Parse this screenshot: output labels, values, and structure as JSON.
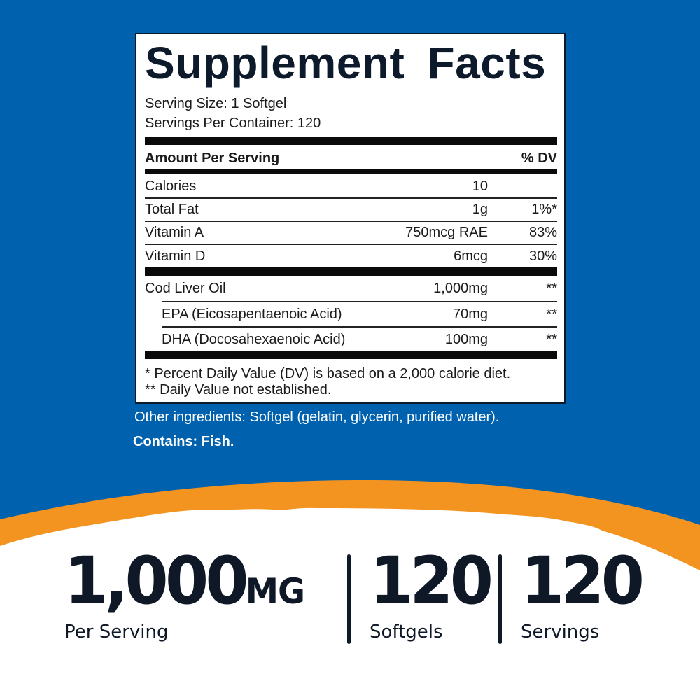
{
  "colors": {
    "background": "#0061ae",
    "accent": "#f39320",
    "text": "#0e1826"
  },
  "facts": {
    "title": "Supplement Facts",
    "serving_size": "Serving Size: 1 Softgel",
    "servings_per_container": "Servings Per Container: 120",
    "header": {
      "amount": "Amount Per Serving",
      "dv": "% DV"
    },
    "rows": [
      {
        "name": "Calories",
        "amount": "10",
        "dv": ""
      },
      {
        "name": "Total Fat",
        "amount": "1g",
        "dv": "1%*"
      },
      {
        "name": "Vitamin A",
        "amount": "750mcg RAE",
        "dv": "83%"
      },
      {
        "name": "Vitamin D",
        "amount": "6mcg",
        "dv": "30%"
      },
      {
        "name": "Cod Liver Oil",
        "amount": "1,000mg",
        "dv": "**"
      },
      {
        "name": "EPA (Eicosapentaenoic Acid)",
        "amount": "70mg",
        "dv": "**"
      },
      {
        "name": "DHA (Docosahexaenoic Acid)",
        "amount": "100mg",
        "dv": "**"
      }
    ],
    "footnotes": [
      "* Percent Daily Value (DV) is based on a 2,000 calorie diet.",
      "** Daily Value not established."
    ]
  },
  "other_ingredients": "Other ingredients: Softgel (gelatin, glycerin, purified water).",
  "contains": "Contains: Fish.",
  "stats": [
    {
      "value": "1,000",
      "unit": "MG",
      "label": "Per Serving"
    },
    {
      "value": "120",
      "unit": "",
      "label": "Softgels"
    },
    {
      "value": "120",
      "unit": "",
      "label": "Servings"
    }
  ]
}
